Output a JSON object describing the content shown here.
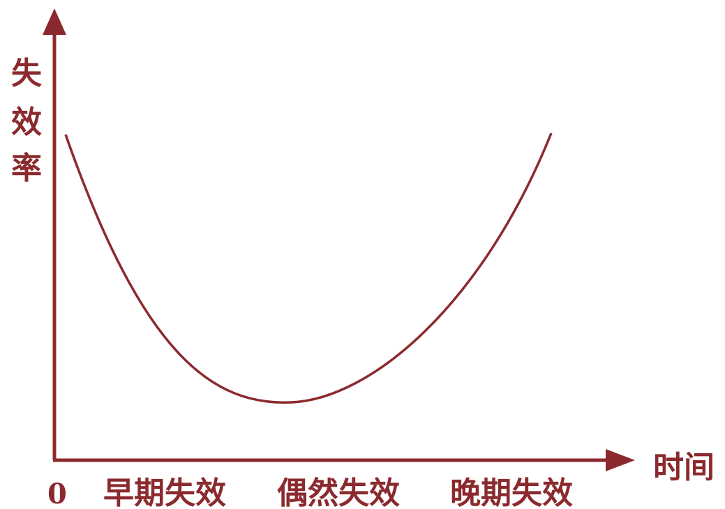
{
  "colors": {
    "ink": "#8b2a2e",
    "background": "#ffffff"
  },
  "axes": {
    "y_label_chars": [
      "失",
      "效",
      "率"
    ],
    "x_label": "时间",
    "origin_label": "0"
  },
  "phases": [
    {
      "label": "早期失效"
    },
    {
      "label": "偶然失效"
    },
    {
      "label": "晚期失效"
    }
  ],
  "curve": {
    "shape": "bathtub"
  }
}
